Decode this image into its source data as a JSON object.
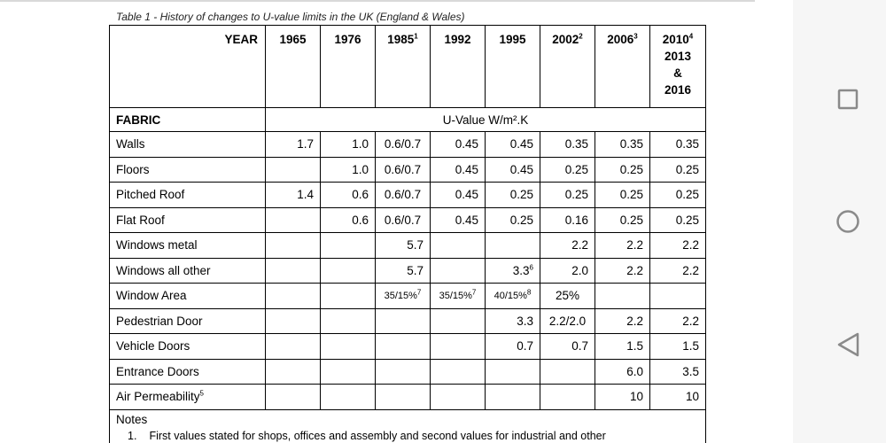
{
  "caption": "Table 1 - History of changes to U-value limits in the UK (England & Wales)",
  "header": {
    "year_label": "YEAR",
    "years": [
      {
        "text": "1965",
        "sup": ""
      },
      {
        "text": "1976",
        "sup": ""
      },
      {
        "text": "1985",
        "sup": "1"
      },
      {
        "text": "1992",
        "sup": ""
      },
      {
        "text": "1995",
        "sup": ""
      },
      {
        "text": "2002",
        "sup": "2"
      },
      {
        "text": "2006",
        "sup": "3"
      }
    ],
    "last_year": {
      "line1": "2010",
      "sup": "4",
      "line2": "2013",
      "line3": "&",
      "line4": "2016"
    }
  },
  "fabric_label": "FABRIC",
  "unit_label": "U-Value W/m².K",
  "rows": [
    {
      "label": "Walls",
      "label_sup": "",
      "cells": [
        [
          "1.7",
          ""
        ],
        [
          "1.0",
          ""
        ],
        [
          "0.6/0.7",
          ""
        ],
        [
          "0.45",
          ""
        ],
        [
          "0.45",
          ""
        ],
        [
          "0.35",
          ""
        ],
        [
          "0.35",
          ""
        ],
        [
          "0.35",
          ""
        ]
      ]
    },
    {
      "label": "Floors",
      "label_sup": "",
      "cells": [
        [
          "",
          ""
        ],
        [
          "1.0",
          ""
        ],
        [
          "0.6/0.7",
          ""
        ],
        [
          "0.45",
          ""
        ],
        [
          "0.45",
          ""
        ],
        [
          "0.25",
          ""
        ],
        [
          "0.25",
          ""
        ],
        [
          "0.25",
          ""
        ]
      ]
    },
    {
      "label": "Pitched Roof",
      "label_sup": "",
      "cells": [
        [
          "1.4",
          ""
        ],
        [
          "0.6",
          ""
        ],
        [
          "0.6/0.7",
          ""
        ],
        [
          "0.45",
          ""
        ],
        [
          "0.25",
          ""
        ],
        [
          "0.25",
          ""
        ],
        [
          "0.25",
          ""
        ],
        [
          "0.25",
          ""
        ]
      ]
    },
    {
      "label": "Flat Roof",
      "label_sup": "",
      "cells": [
        [
          "",
          ""
        ],
        [
          "0.6",
          ""
        ],
        [
          "0.6/0.7",
          ""
        ],
        [
          "0.45",
          ""
        ],
        [
          "0.25",
          ""
        ],
        [
          "0.16",
          ""
        ],
        [
          "0.25",
          ""
        ],
        [
          "0.25",
          ""
        ]
      ]
    },
    {
      "label": "Windows metal",
      "label_sup": "",
      "cells": [
        [
          "",
          ""
        ],
        [
          "",
          ""
        ],
        [
          "5.7",
          ""
        ],
        [
          "",
          ""
        ],
        [
          "",
          ""
        ],
        [
          "2.2",
          ""
        ],
        [
          "2.2",
          ""
        ],
        [
          "2.2",
          ""
        ]
      ]
    },
    {
      "label": "Windows all other",
      "label_sup": "",
      "cells": [
        [
          "",
          ""
        ],
        [
          "",
          ""
        ],
        [
          "5.7",
          ""
        ],
        [
          "",
          ""
        ],
        [
          "3.3",
          "6"
        ],
        [
          "2.0",
          ""
        ],
        [
          "2.2",
          ""
        ],
        [
          "2.2",
          ""
        ]
      ]
    },
    {
      "label": "Window Area",
      "label_sup": "",
      "cells": [
        [
          "",
          ""
        ],
        [
          "",
          ""
        ],
        [
          "35/15%",
          "7"
        ],
        [
          "35/15%",
          "7"
        ],
        [
          "40/15%",
          "8"
        ],
        [
          "25%",
          ""
        ],
        [
          "",
          ""
        ],
        [
          "",
          ""
        ]
      ]
    },
    {
      "label": "Pedestrian Door",
      "label_sup": "",
      "cells": [
        [
          "",
          ""
        ],
        [
          "",
          ""
        ],
        [
          "",
          ""
        ],
        [
          "",
          ""
        ],
        [
          "3.3",
          ""
        ],
        [
          "2.2/2.0",
          ""
        ],
        [
          "2.2",
          ""
        ],
        [
          "2.2",
          ""
        ]
      ]
    },
    {
      "label": "Vehicle Doors",
      "label_sup": "",
      "cells": [
        [
          "",
          ""
        ],
        [
          "",
          ""
        ],
        [
          "",
          ""
        ],
        [
          "",
          ""
        ],
        [
          "0.7",
          ""
        ],
        [
          "0.7",
          ""
        ],
        [
          "1.5",
          ""
        ],
        [
          "1.5",
          ""
        ]
      ]
    },
    {
      "label": "Entrance Doors",
      "label_sup": "",
      "cells": [
        [
          "",
          ""
        ],
        [
          "",
          ""
        ],
        [
          "",
          ""
        ],
        [
          "",
          ""
        ],
        [
          "",
          ""
        ],
        [
          "",
          ""
        ],
        [
          "6.0",
          ""
        ],
        [
          "3.5",
          ""
        ]
      ]
    },
    {
      "label": "Air Permeability",
      "label_sup": "5",
      "cells": [
        [
          "",
          ""
        ],
        [
          "",
          ""
        ],
        [
          "",
          ""
        ],
        [
          "",
          ""
        ],
        [
          "",
          ""
        ],
        [
          "",
          ""
        ],
        [
          "10",
          ""
        ],
        [
          "10",
          ""
        ]
      ]
    }
  ],
  "notes": {
    "title": "Notes",
    "item1_num": "1.",
    "item1_text": "First values stated for shops, offices and assembly and second values for industrial and other"
  },
  "nav": {
    "buttons": [
      "recents-icon",
      "home-icon",
      "back-icon"
    ],
    "color": "#8a8a8a"
  }
}
